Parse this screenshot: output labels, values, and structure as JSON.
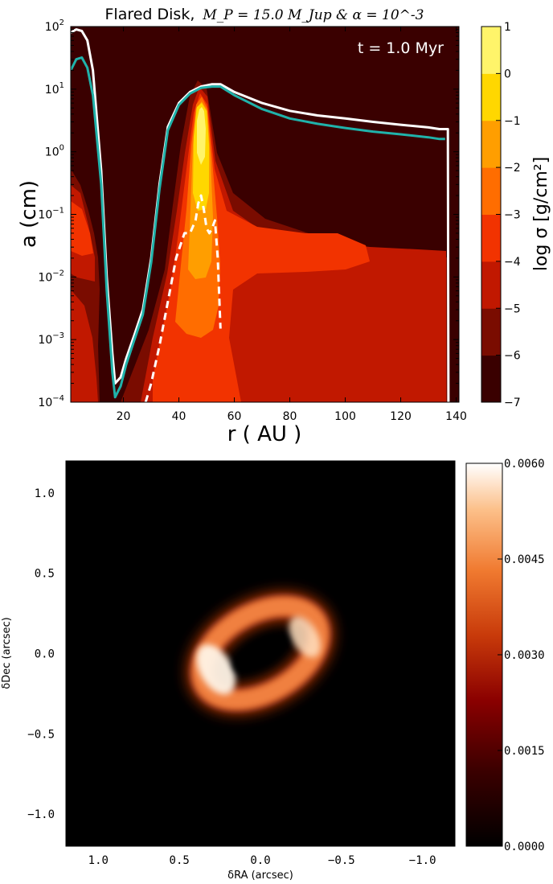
{
  "chart_data": [
    {
      "type": "heatmap",
      "subtype": "filled-contour",
      "title_prefix": "Flared Disk,",
      "title_math": "M_P = 15.0 M_Jup & α = 10^-3",
      "annotation": "t = 1.0 Myr",
      "xlabel": "r ( AU )",
      "ylabel": "a (cm)",
      "xlim": [
        1,
        141
      ],
      "ylim": [
        0.0001,
        100
      ],
      "yscale": "log",
      "xticks": [
        20,
        40,
        60,
        80,
        100,
        120,
        140
      ],
      "xtick_labels": [
        "20",
        "40",
        "60",
        "80",
        "100",
        "120",
        "140"
      ],
      "ytick_labels": [
        "10^-4",
        "10^-3",
        "10^-2",
        "10^-1",
        "10^0",
        "10^1",
        "10^2"
      ],
      "colorbar": {
        "label": "log σ [g/cm²]",
        "levels": [
          -7,
          -6,
          -5,
          -4,
          -3,
          -2,
          -1,
          0,
          1
        ],
        "tick_labels": [
          "−7",
          "−6",
          "−5",
          "−4",
          "−3",
          "−2",
          "−1",
          "0",
          "1"
        ],
        "colors": [
          "#3a0000",
          "#7a0c00",
          "#c11800",
          "#f23300",
          "#ff6d00",
          "#ff9e00",
          "#ffd700",
          "#fff46a",
          "#fffdd0"
        ]
      },
      "series": [
        {
          "name": "",
          "color": "#ffffff",
          "style": "solid",
          "x": [
            1,
            3,
            5,
            7,
            9,
            12,
            14,
            16,
            17,
            19,
            21,
            24,
            27,
            30,
            33,
            36,
            40,
            44,
            48,
            52,
            55,
            60,
            70,
            80,
            90,
            100,
            110,
            120,
            130,
            134,
            137,
            137.2
          ],
          "y": [
            80,
            90,
            85,
            60,
            20,
            0.5,
            0.01,
            0.0006,
            0.0002,
            0.00025,
            0.0005,
            0.0012,
            0.003,
            0.02,
            0.3,
            2.5,
            6,
            9,
            11,
            12,
            12,
            9,
            6,
            4.5,
            3.8,
            3.4,
            3.0,
            2.7,
            2.45,
            2.3,
            2.3,
            0.0001
          ]
        },
        {
          "name": "",
          "color": "#20b2aa",
          "style": "solid",
          "x": [
            1,
            3,
            5,
            7,
            9,
            12,
            14,
            16,
            17,
            19,
            21,
            24,
            27,
            30,
            33,
            36,
            40,
            44,
            48,
            52,
            55,
            60,
            70,
            80,
            90,
            100,
            110,
            120,
            130,
            134,
            136
          ],
          "y": [
            20,
            30,
            32,
            22,
            8,
            0.3,
            0.006,
            0.0003,
            0.00012,
            0.00018,
            0.0004,
            0.001,
            0.0025,
            0.017,
            0.25,
            2.2,
            5.6,
            8.5,
            10.5,
            11,
            11,
            8,
            4.8,
            3.4,
            2.8,
            2.4,
            2.1,
            1.9,
            1.7,
            1.6,
            1.6
          ]
        },
        {
          "name": "",
          "color": "#ffffff",
          "style": "dashed",
          "x": [
            28,
            30,
            33,
            36,
            39,
            42,
            44,
            46,
            47,
            48,
            49,
            50,
            51,
            52,
            53,
            54,
            55
          ],
          "y": [
            0.0001,
            0.0002,
            0.0008,
            0.004,
            0.02,
            0.05,
            0.05,
            0.08,
            0.15,
            0.2,
            0.12,
            0.06,
            0.05,
            0.06,
            0.08,
            0.02,
            0.0015
          ]
        }
      ]
    },
    {
      "type": "heatmap",
      "subtype": "image",
      "title": "",
      "xlabel": "δRA (arcsec)",
      "ylabel": "δDec (arcsec)",
      "xlim": [
        1.2,
        -1.2
      ],
      "ylim": [
        -1.2,
        1.2
      ],
      "xticks": [
        1.0,
        0.5,
        0.0,
        -0.5,
        -1.0
      ],
      "xtick_labels": [
        "1.0",
        "0.5",
        "0.0",
        "−0.5",
        "−1.0"
      ],
      "yticks": [
        1.0,
        0.5,
        0.0,
        -0.5,
        -1.0
      ],
      "ytick_labels": [
        "1.0",
        "0.5",
        "0.0",
        "−0.5",
        "−1.0"
      ],
      "colorbar": {
        "range": [
          0.0,
          0.006
        ],
        "ticks": [
          0.0,
          0.0015,
          0.003,
          0.0045,
          0.006
        ],
        "tick_labels": [
          "0.0000",
          "0.0015",
          "0.0030",
          "0.0045",
          "0.0060"
        ],
        "colormap": "gist_heat"
      },
      "ring": {
        "center": [
          0.0,
          0.0
        ],
        "radius_arcsec": 0.35,
        "axis_ratio": 0.62,
        "position_angle_deg": 30,
        "peak_value": 0.006,
        "bright_side": "east"
      }
    }
  ]
}
